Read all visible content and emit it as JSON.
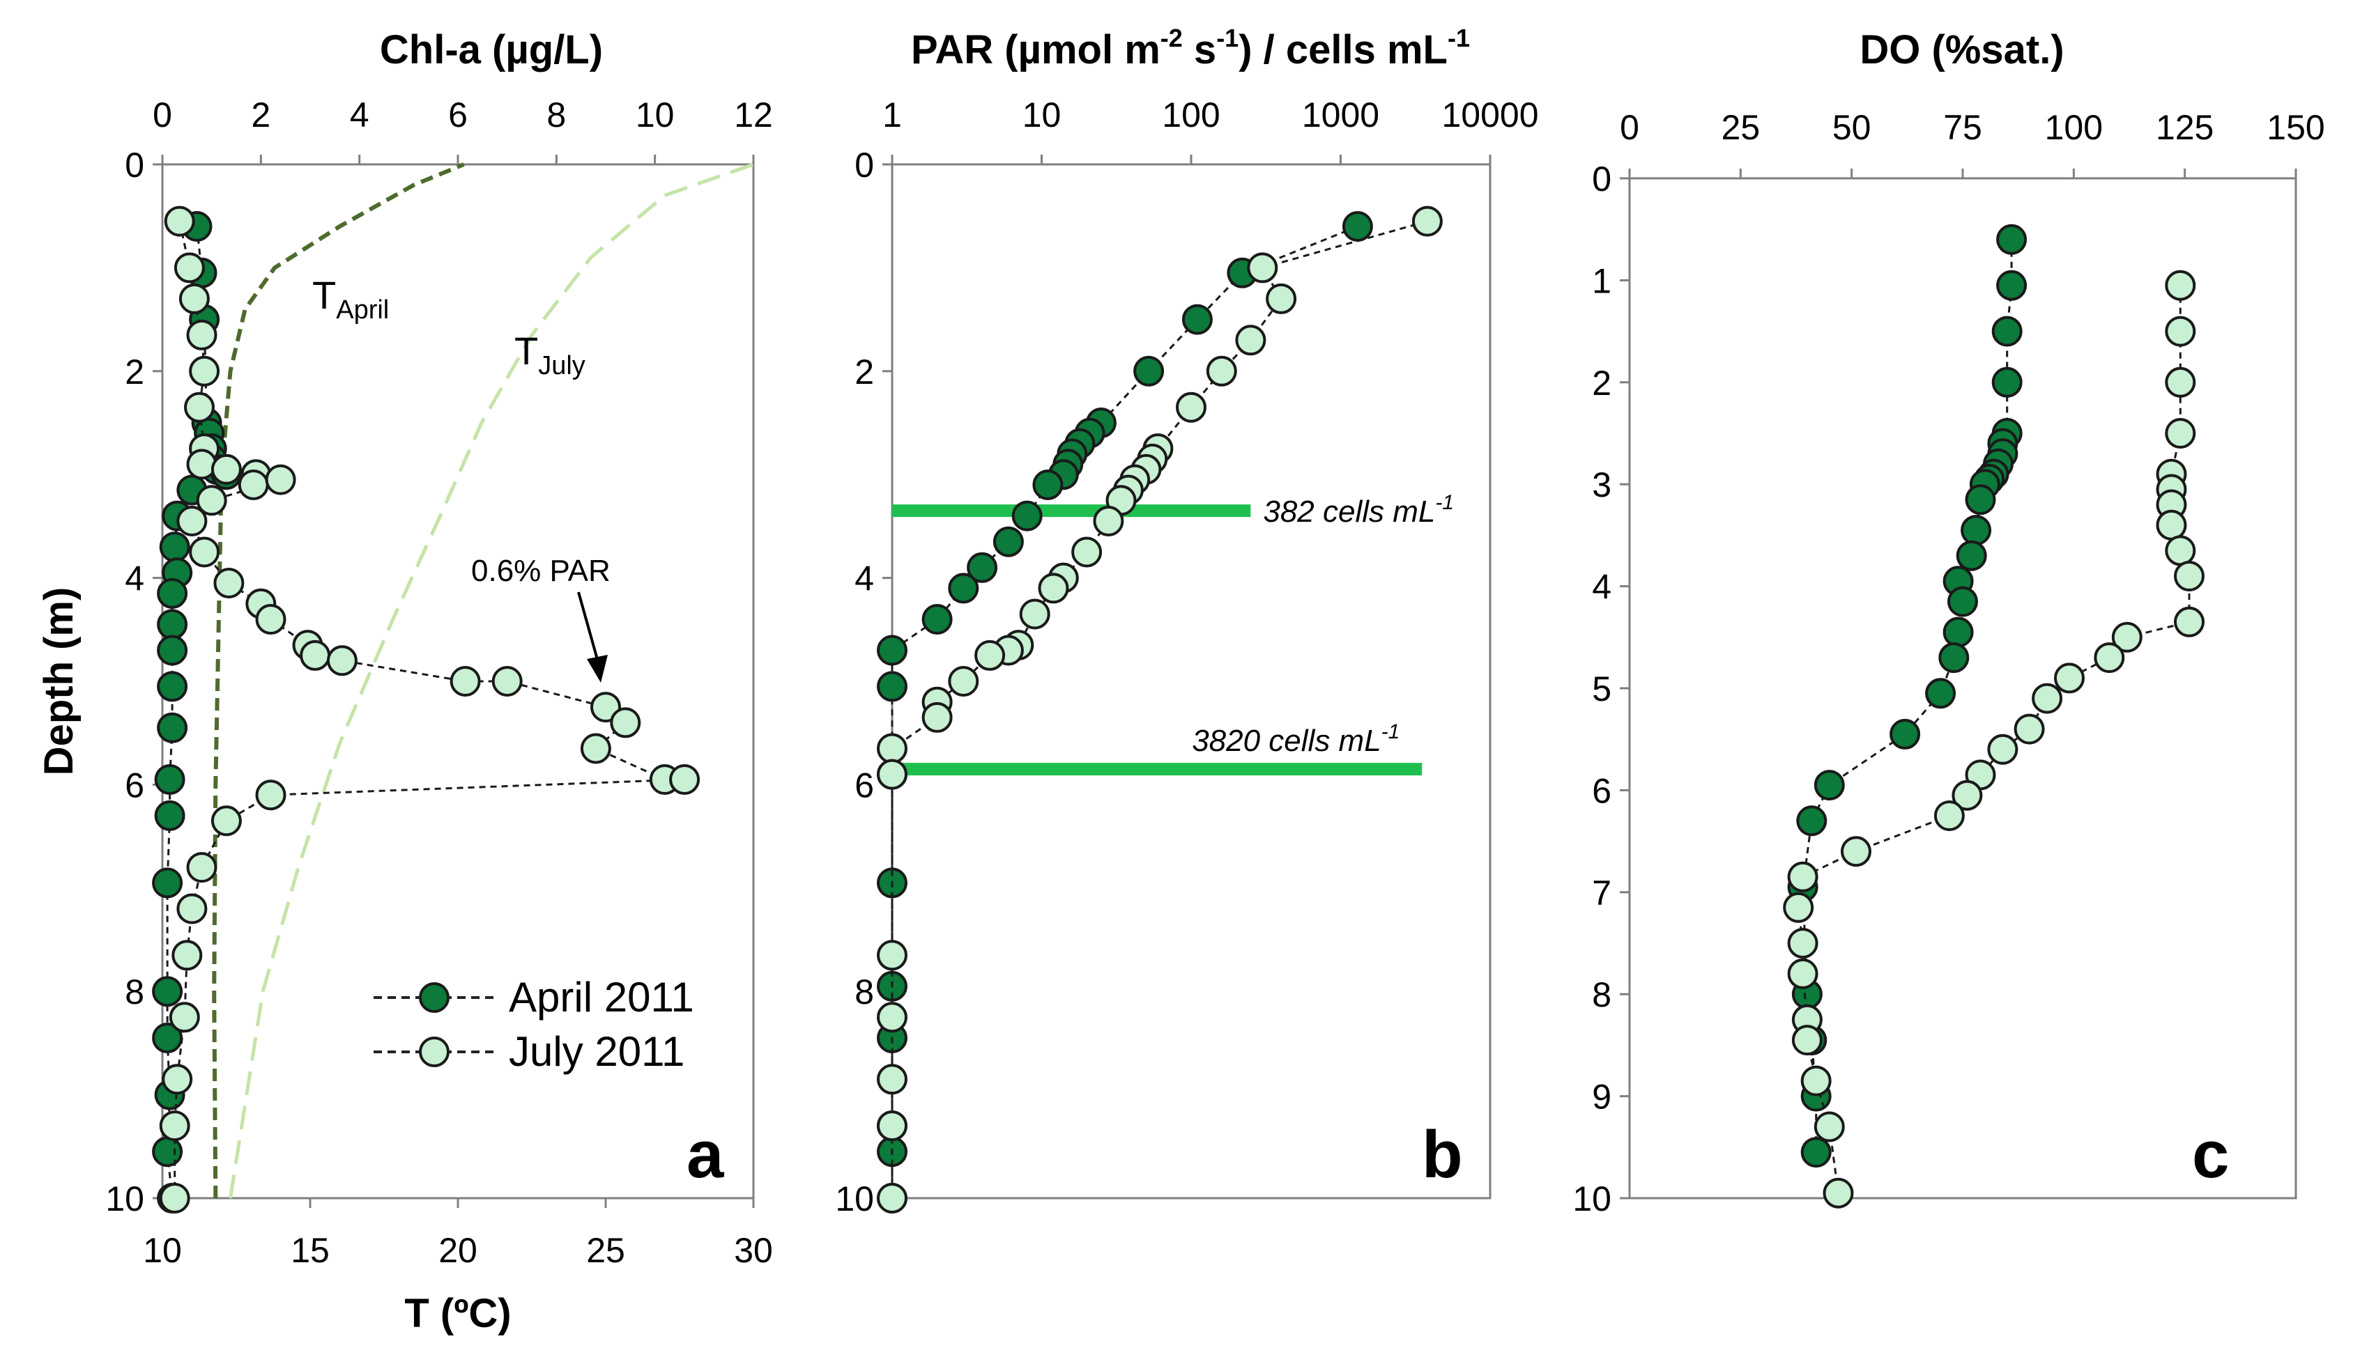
{
  "chart_data": [
    {
      "panel": "a",
      "type": "scatter",
      "title": "Chl-a (µg/L)",
      "xlabel_bottom": "T (ºC)",
      "ylabel": "Depth (m)",
      "xlim_top": [
        0,
        12
      ],
      "xlim_bottom": [
        10,
        30
      ],
      "ylim": [
        0,
        10
      ],
      "xticks_top": [
        "0",
        "2",
        "4",
        "6",
        "8",
        "10",
        "12"
      ],
      "xticks_bottom": [
        "10",
        "15",
        "20",
        "25",
        "30"
      ],
      "yticks": [
        "0",
        "2",
        "4",
        "6",
        "8",
        "10"
      ],
      "panel_label": "a",
      "series": [
        {
          "name": "April 2011",
          "color": "#0b7a3a",
          "points": [
            [
              0.7,
              0.6
            ],
            [
              0.8,
              1.05
            ],
            [
              0.85,
              1.5
            ],
            [
              0.9,
              2.5
            ],
            [
              0.95,
              2.6
            ],
            [
              1.0,
              2.75
            ],
            [
              1.0,
              2.85
            ],
            [
              1.1,
              2.95
            ],
            [
              1.3,
              3.0
            ],
            [
              0.6,
              3.15
            ],
            [
              0.3,
              3.4
            ],
            [
              0.25,
              3.7
            ],
            [
              0.3,
              3.95
            ],
            [
              0.2,
              4.15
            ],
            [
              0.2,
              4.45
            ],
            [
              0.2,
              4.7
            ],
            [
              0.2,
              5.05
            ],
            [
              0.2,
              5.45
            ],
            [
              0.15,
              5.95
            ],
            [
              0.15,
              6.3
            ],
            [
              0.1,
              6.95
            ],
            [
              0.1,
              8.0
            ],
            [
              0.1,
              8.45
            ],
            [
              0.15,
              9.0
            ],
            [
              0.1,
              9.55
            ],
            [
              0.2,
              10.0
            ]
          ]
        },
        {
          "name": "July 2011",
          "color": "#c8f0d2",
          "points": [
            [
              0.35,
              0.55
            ],
            [
              0.55,
              1.0
            ],
            [
              0.65,
              1.3
            ],
            [
              0.8,
              1.65
            ],
            [
              0.85,
              2.0
            ],
            [
              0.75,
              2.35
            ],
            [
              0.85,
              2.75
            ],
            [
              0.8,
              2.9
            ],
            [
              1.3,
              2.95
            ],
            [
              1.9,
              3.0
            ],
            [
              1.85,
              3.1
            ],
            [
              2.4,
              3.05
            ],
            [
              1.0,
              3.25
            ],
            [
              0.6,
              3.45
            ],
            [
              0.85,
              3.75
            ],
            [
              1.35,
              4.05
            ],
            [
              2.0,
              4.25
            ],
            [
              2.2,
              4.4
            ],
            [
              2.95,
              4.65
            ],
            [
              3.1,
              4.75
            ],
            [
              3.65,
              4.8
            ],
            [
              6.15,
              5.0
            ],
            [
              7.0,
              5.0
            ],
            [
              9.0,
              5.25
            ],
            [
              9.4,
              5.4
            ],
            [
              8.8,
              5.65
            ],
            [
              10.2,
              5.95
            ],
            [
              10.6,
              5.95
            ],
            [
              2.2,
              6.1
            ],
            [
              1.3,
              6.35
            ],
            [
              0.8,
              6.8
            ],
            [
              0.6,
              7.2
            ],
            [
              0.5,
              7.65
            ],
            [
              0.45,
              8.25
            ],
            [
              0.3,
              8.85
            ],
            [
              0.25,
              9.3
            ],
            [
              0.25,
              10.0
            ]
          ]
        },
        {
          "name": "T_April",
          "style": "dashed",
          "color": "#4e6b2e",
          "points": [
            [
              11.8,
              10.0
            ],
            [
              11.75,
              8.0
            ],
            [
              11.8,
              6.0
            ],
            [
              11.9,
              4.5
            ],
            [
              12.0,
              3.0
            ],
            [
              12.3,
              2.0
            ],
            [
              12.8,
              1.4
            ],
            [
              13.8,
              1.0
            ],
            [
              16.0,
              0.6
            ],
            [
              18.5,
              0.2
            ],
            [
              20.2,
              0.0
            ]
          ]
        },
        {
          "name": "T_July",
          "style": "dashed",
          "color": "#c4e4a8",
          "points": [
            [
              12.3,
              10.0
            ],
            [
              13.4,
              8.0
            ],
            [
              14.6,
              6.8
            ],
            [
              16.0,
              5.6
            ],
            [
              17.8,
              4.4
            ],
            [
              19.4,
              3.4
            ],
            [
              20.8,
              2.5
            ],
            [
              22.5,
              1.65
            ],
            [
              24.5,
              0.9
            ],
            [
              27.0,
              0.3
            ],
            [
              30.0,
              0.0
            ]
          ]
        }
      ],
      "annotations": {
        "t_april_main": "T",
        "t_april_sub": "April",
        "t_july_main": "T",
        "t_july_sub": "July",
        "par_note": "0.6% PAR"
      },
      "legend": [
        "April 2011",
        "July 2011"
      ]
    },
    {
      "panel": "b",
      "type": "scatter",
      "title_main": "PAR (µmol m",
      "title_sup1": "-2",
      "title_mid": " s",
      "title_sup2": "-1",
      "title_end": ") / cells mL",
      "title_sup3": "-1",
      "xscale": "log",
      "xlim": [
        1,
        10000
      ],
      "ylim": [
        0,
        10
      ],
      "xticks": [
        "1",
        "10",
        "100",
        "1000",
        "10000"
      ],
      "yticks": [
        "0",
        "2",
        "4",
        "6",
        "8",
        "10"
      ],
      "panel_label": "b",
      "series": [
        {
          "name": "April 2011",
          "color": "#0b7a3a",
          "points": [
            [
              1300,
              0.6
            ],
            [
              220,
              1.05
            ],
            [
              110,
              1.5
            ],
            [
              52,
              2.0
            ],
            [
              25,
              2.5
            ],
            [
              21,
              2.6
            ],
            [
              18,
              2.7
            ],
            [
              16,
              2.8
            ],
            [
              15,
              2.9
            ],
            [
              14,
              3.0
            ],
            [
              11,
              3.1
            ],
            [
              8,
              3.4
            ],
            [
              6,
              3.65
            ],
            [
              4,
              3.9
            ],
            [
              3,
              4.1
            ],
            [
              2,
              4.4
            ],
            [
              1,
              4.7
            ],
            [
              1,
              5.05
            ],
            [
              1,
              5.9
            ],
            [
              1,
              6.95
            ],
            [
              1,
              7.95
            ],
            [
              1,
              8.45
            ],
            [
              1,
              9.3
            ],
            [
              1,
              9.55
            ],
            [
              1,
              10.0
            ]
          ]
        },
        {
          "name": "July 2011",
          "color": "#c8f0d2",
          "points": [
            [
              3800,
              0.55
            ],
            [
              300,
              1.0
            ],
            [
              400,
              1.3
            ],
            [
              250,
              1.7
            ],
            [
              160,
              2.0
            ],
            [
              100,
              2.35
            ],
            [
              60,
              2.75
            ],
            [
              55,
              2.85
            ],
            [
              50,
              2.95
            ],
            [
              42,
              3.05
            ],
            [
              38,
              3.15
            ],
            [
              34,
              3.25
            ],
            [
              28,
              3.45
            ],
            [
              20,
              3.75
            ],
            [
              14,
              4.0
            ],
            [
              12,
              4.1
            ],
            [
              9,
              4.35
            ],
            [
              7,
              4.65
            ],
            [
              6,
              4.7
            ],
            [
              4.5,
              4.75
            ],
            [
              3,
              5.0
            ],
            [
              2,
              5.2
            ],
            [
              2,
              5.35
            ],
            [
              1,
              5.65
            ],
            [
              1,
              5.9
            ],
            [
              1,
              7.65
            ],
            [
              1,
              8.25
            ],
            [
              1,
              8.85
            ],
            [
              1,
              9.3
            ],
            [
              1,
              10.0
            ]
          ]
        }
      ],
      "cell_lines": [
        {
          "depth": 3.35,
          "x_end": 250,
          "label_main": "382  cells mL",
          "label_sup": "-1"
        },
        {
          "depth": 5.85,
          "x_end": 3500,
          "label_main": "3820  cells mL",
          "label_sup": "-1"
        }
      ]
    },
    {
      "panel": "c",
      "type": "scatter",
      "title": "DO (%sat.)",
      "xlim": [
        0,
        150
      ],
      "ylim": [
        0,
        10
      ],
      "xticks": [
        "0",
        "25",
        "50",
        "75",
        "100",
        "125",
        "150"
      ],
      "yticks": [
        "0",
        "1",
        "2",
        "3",
        "4",
        "5",
        "6",
        "7",
        "8",
        "9",
        "10"
      ],
      "panel_label": "c",
      "series": [
        {
          "name": "April 2011",
          "color": "#0b7a3a",
          "points": [
            [
              86,
              0.6
            ],
            [
              86,
              1.05
            ],
            [
              85,
              1.5
            ],
            [
              85,
              2.0
            ],
            [
              85,
              2.5
            ],
            [
              84,
              2.6
            ],
            [
              84,
              2.7
            ],
            [
              83,
              2.8
            ],
            [
              82,
              2.9
            ],
            [
              81,
              2.95
            ],
            [
              80,
              3.0
            ],
            [
              79,
              3.15
            ],
            [
              78,
              3.45
            ],
            [
              77,
              3.7
            ],
            [
              74,
              3.95
            ],
            [
              75,
              4.15
            ],
            [
              74,
              4.45
            ],
            [
              73,
              4.7
            ],
            [
              70,
              5.05
            ],
            [
              62,
              5.45
            ],
            [
              45,
              5.95
            ],
            [
              41,
              6.3
            ],
            [
              39,
              6.95
            ],
            [
              40,
              8.0
            ],
            [
              41,
              8.45
            ],
            [
              42,
              9.0
            ],
            [
              42,
              9.55
            ]
          ]
        },
        {
          "name": "July 2011",
          "color": "#c8f0d2",
          "points": [
            [
              124,
              1.05
            ],
            [
              124,
              1.5
            ],
            [
              124,
              2.0
            ],
            [
              124,
              2.5
            ],
            [
              122,
              2.9
            ],
            [
              122,
              3.05
            ],
            [
              122,
              3.2
            ],
            [
              122,
              3.4
            ],
            [
              124,
              3.65
            ],
            [
              126,
              3.9
            ],
            [
              126,
              4.35
            ],
            [
              112,
              4.5
            ],
            [
              108,
              4.7
            ],
            [
              99,
              4.9
            ],
            [
              94,
              5.1
            ],
            [
              90,
              5.4
            ],
            [
              84,
              5.6
            ],
            [
              79,
              5.85
            ],
            [
              76,
              6.05
            ],
            [
              72,
              6.25
            ],
            [
              51,
              6.6
            ],
            [
              39,
              6.85
            ],
            [
              38,
              7.15
            ],
            [
              39,
              7.5
            ],
            [
              39,
              7.8
            ],
            [
              40,
              8.25
            ],
            [
              40,
              8.45
            ],
            [
              42,
              8.85
            ],
            [
              45,
              9.3
            ],
            [
              47,
              9.95
            ]
          ]
        }
      ]
    }
  ]
}
